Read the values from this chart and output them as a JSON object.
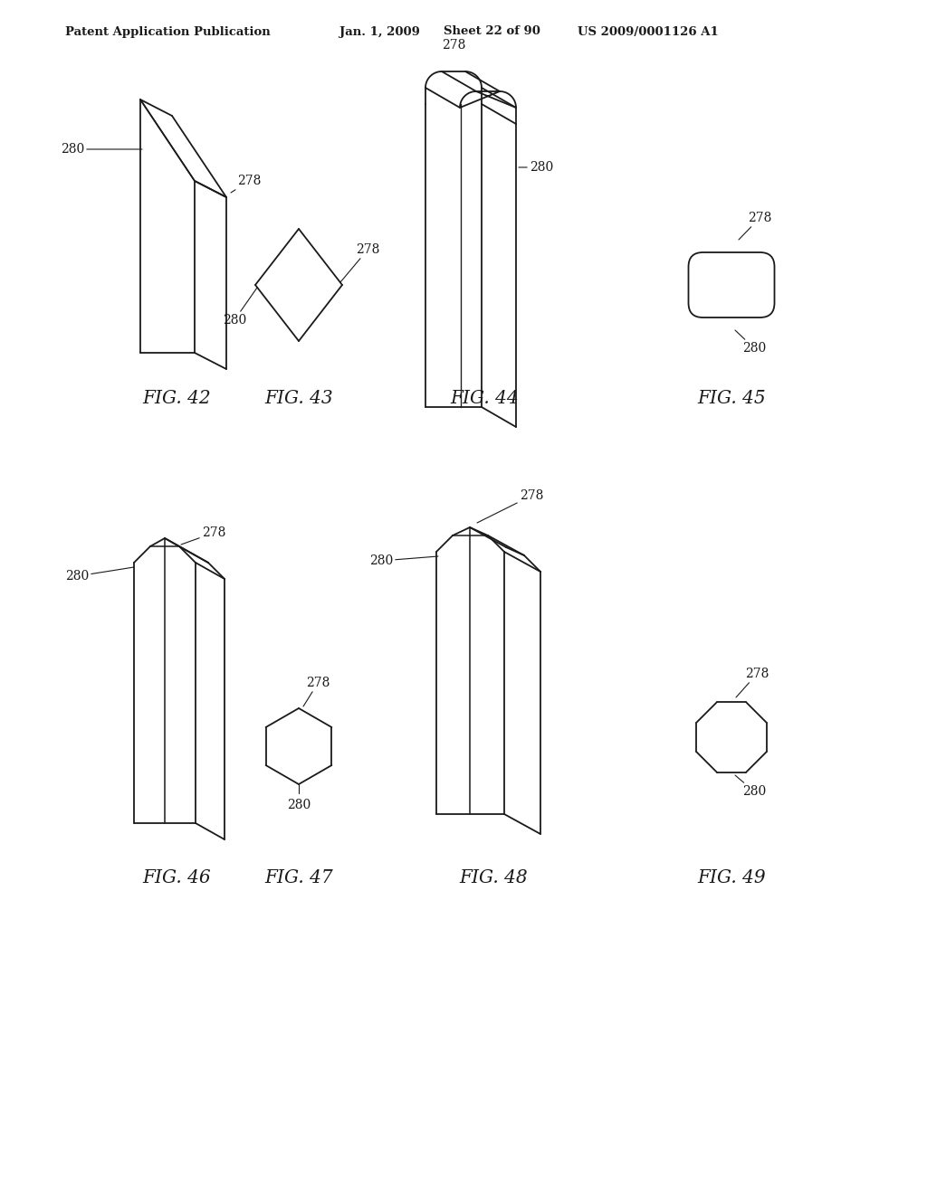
{
  "bg_color": "#ffffff",
  "line_color": "#1a1a1a",
  "header_text": "Patent Application Publication",
  "header_date": "Jan. 1, 2009",
  "header_sheet": "Sheet 22 of 90",
  "header_patent": "US 2009/0001126 A1",
  "lw": 1.3
}
